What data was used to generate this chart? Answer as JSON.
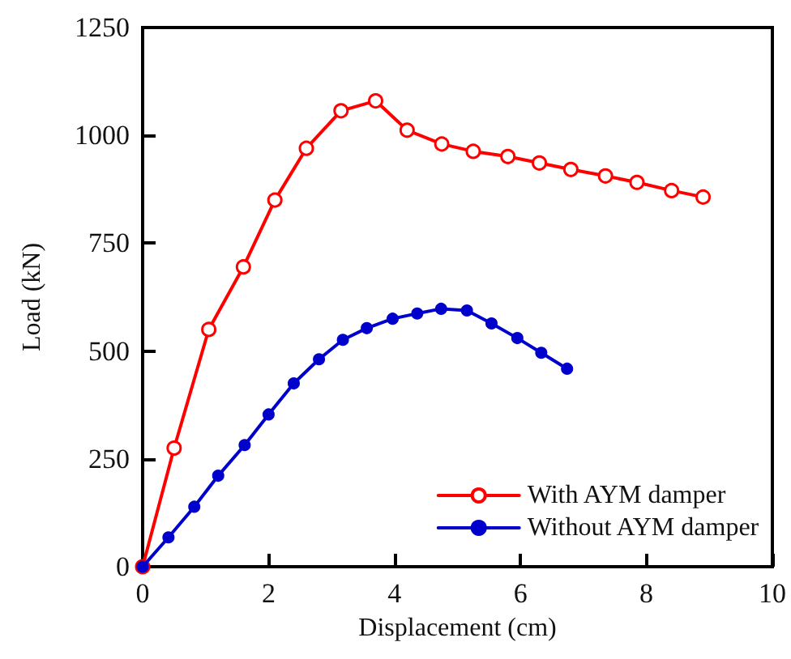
{
  "chart_data": {
    "type": "line",
    "xlabel": "Displacement (cm)",
    "ylabel": "Load (kN)",
    "xlim": [
      0,
      10
    ],
    "xticks": [
      0,
      2,
      4,
      6,
      8,
      10
    ],
    "ylim": [
      0,
      1250
    ],
    "yticks": [
      0,
      250,
      500,
      750,
      1000,
      1250
    ],
    "grid": false,
    "legend": "bottom right",
    "line_style": "solid",
    "series": [
      {
        "name": "With AYM damper",
        "color": "#ff0000",
        "marker": "circle",
        "x": [
          0,
          0.5,
          1.05,
          1.6,
          2.1,
          2.6,
          3.15,
          3.7,
          4.2,
          4.75,
          5.25,
          5.8,
          6.3,
          6.8,
          7.35,
          7.85,
          8.4,
          8.9
        ],
        "values": [
          0,
          275,
          550,
          695,
          850,
          970,
          1057,
          1080,
          1012,
          980,
          963,
          951,
          936,
          921,
          906,
          891,
          872,
          857
        ]
      },
      {
        "name": "Without AYM damper",
        "color": "#0000cc",
        "marker": "circle",
        "x": [
          0,
          0.41,
          0.82,
          1.2,
          1.62,
          2.0,
          2.4,
          2.8,
          3.18,
          3.56,
          3.97,
          4.36,
          4.74,
          5.15,
          5.54,
          5.95,
          6.33,
          6.74
        ],
        "values": [
          0,
          68,
          139,
          211,
          282,
          353,
          425,
          481,
          526,
          553,
          575,
          587,
          598,
          594,
          564,
          530,
          496,
          459
        ]
      }
    ]
  }
}
